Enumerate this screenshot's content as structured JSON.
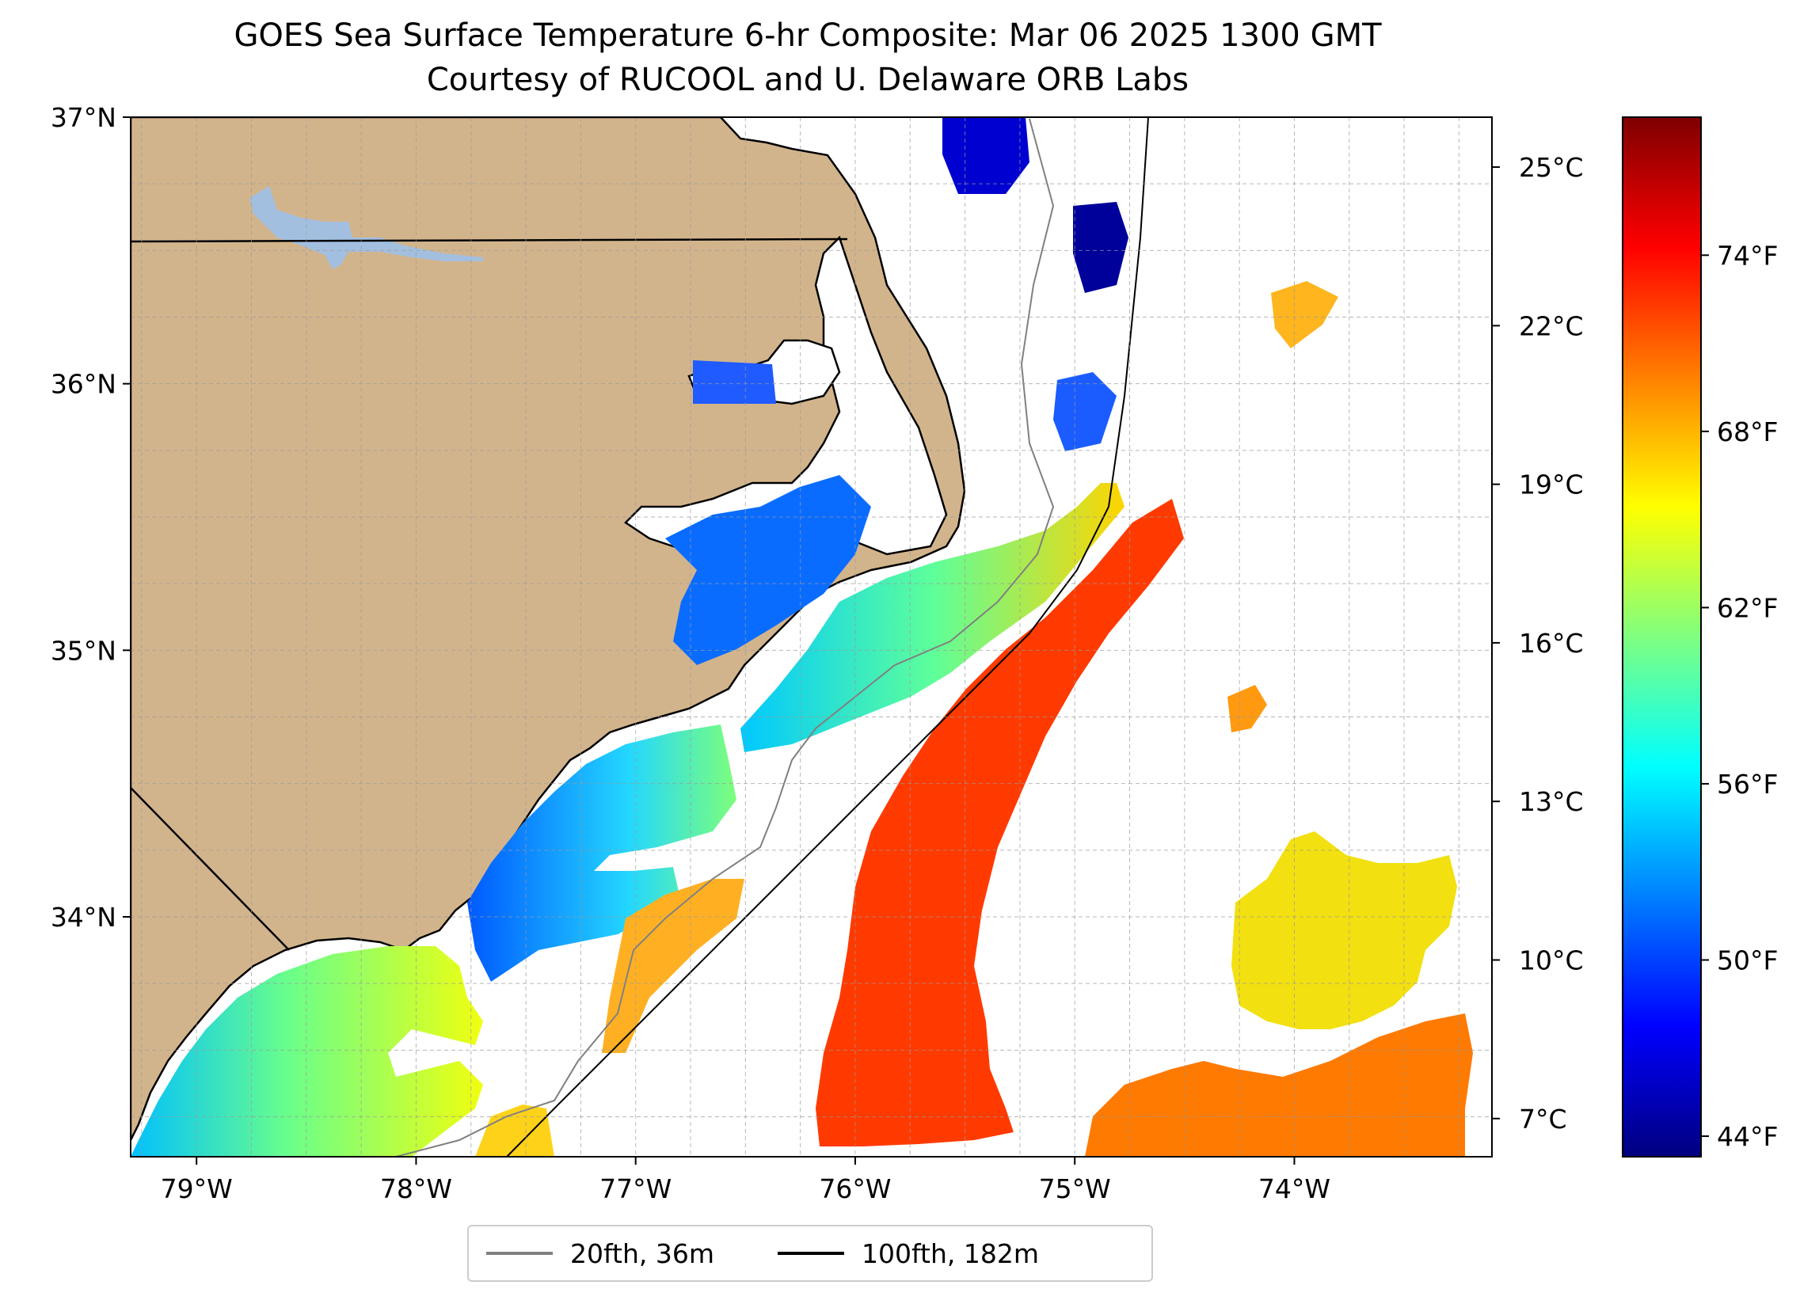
{
  "title": {
    "line1": "GOES Sea Surface Temperature 6-hr Composite: Mar 06 2025 1300 GMT",
    "line2": "Courtesy of RUCOOL and U. Delaware ORB Labs"
  },
  "map": {
    "extent": {
      "lon_min": -79.3,
      "lon_max": -73.1,
      "lat_min": 33.1,
      "lat_max": 37.0
    },
    "lat_ticks": [
      {
        "value": 37,
        "label": "37°N"
      },
      {
        "value": 36,
        "label": "36°N"
      },
      {
        "value": 35,
        "label": "35°N"
      },
      {
        "value": 34,
        "label": "34°N"
      }
    ],
    "lon_ticks": [
      {
        "value": -79,
        "label": "79°W"
      },
      {
        "value": -78,
        "label": "78°W"
      },
      {
        "value": -77,
        "label": "77°W"
      },
      {
        "value": -76,
        "label": "76°W"
      },
      {
        "value": -75,
        "label": "75°W"
      },
      {
        "value": -74,
        "label": "74°W"
      }
    ],
    "gridlines": true,
    "land_color": "#d2b48c",
    "lake_color": "#a3bfe0"
  },
  "colorbar": {
    "colormap": "jet",
    "celsius_ticks": [
      {
        "value": 25,
        "label": "25°C"
      },
      {
        "value": 22,
        "label": "22°C"
      },
      {
        "value": 19,
        "label": "19°C"
      },
      {
        "value": 16,
        "label": "16°C"
      },
      {
        "value": 13,
        "label": "13°C"
      },
      {
        "value": 10,
        "label": "10°C"
      },
      {
        "value": 7,
        "label": "7°C"
      }
    ],
    "fahrenheit_ticks": [
      {
        "value": 74,
        "label": "74°F"
      },
      {
        "value": 68,
        "label": "68°F"
      },
      {
        "value": 62,
        "label": "62°F"
      },
      {
        "value": 56,
        "label": "56°F"
      },
      {
        "value": 50,
        "label": "50°F"
      },
      {
        "value": 44,
        "label": "44°F"
      }
    ],
    "range_f": [
      43.3,
      78.7
    ]
  },
  "legend": {
    "placement": "bottom-center",
    "items": [
      {
        "label": "20fth, 36m",
        "color": "#808080"
      },
      {
        "label": "100fth, 182m",
        "color": "#000000"
      }
    ]
  }
}
